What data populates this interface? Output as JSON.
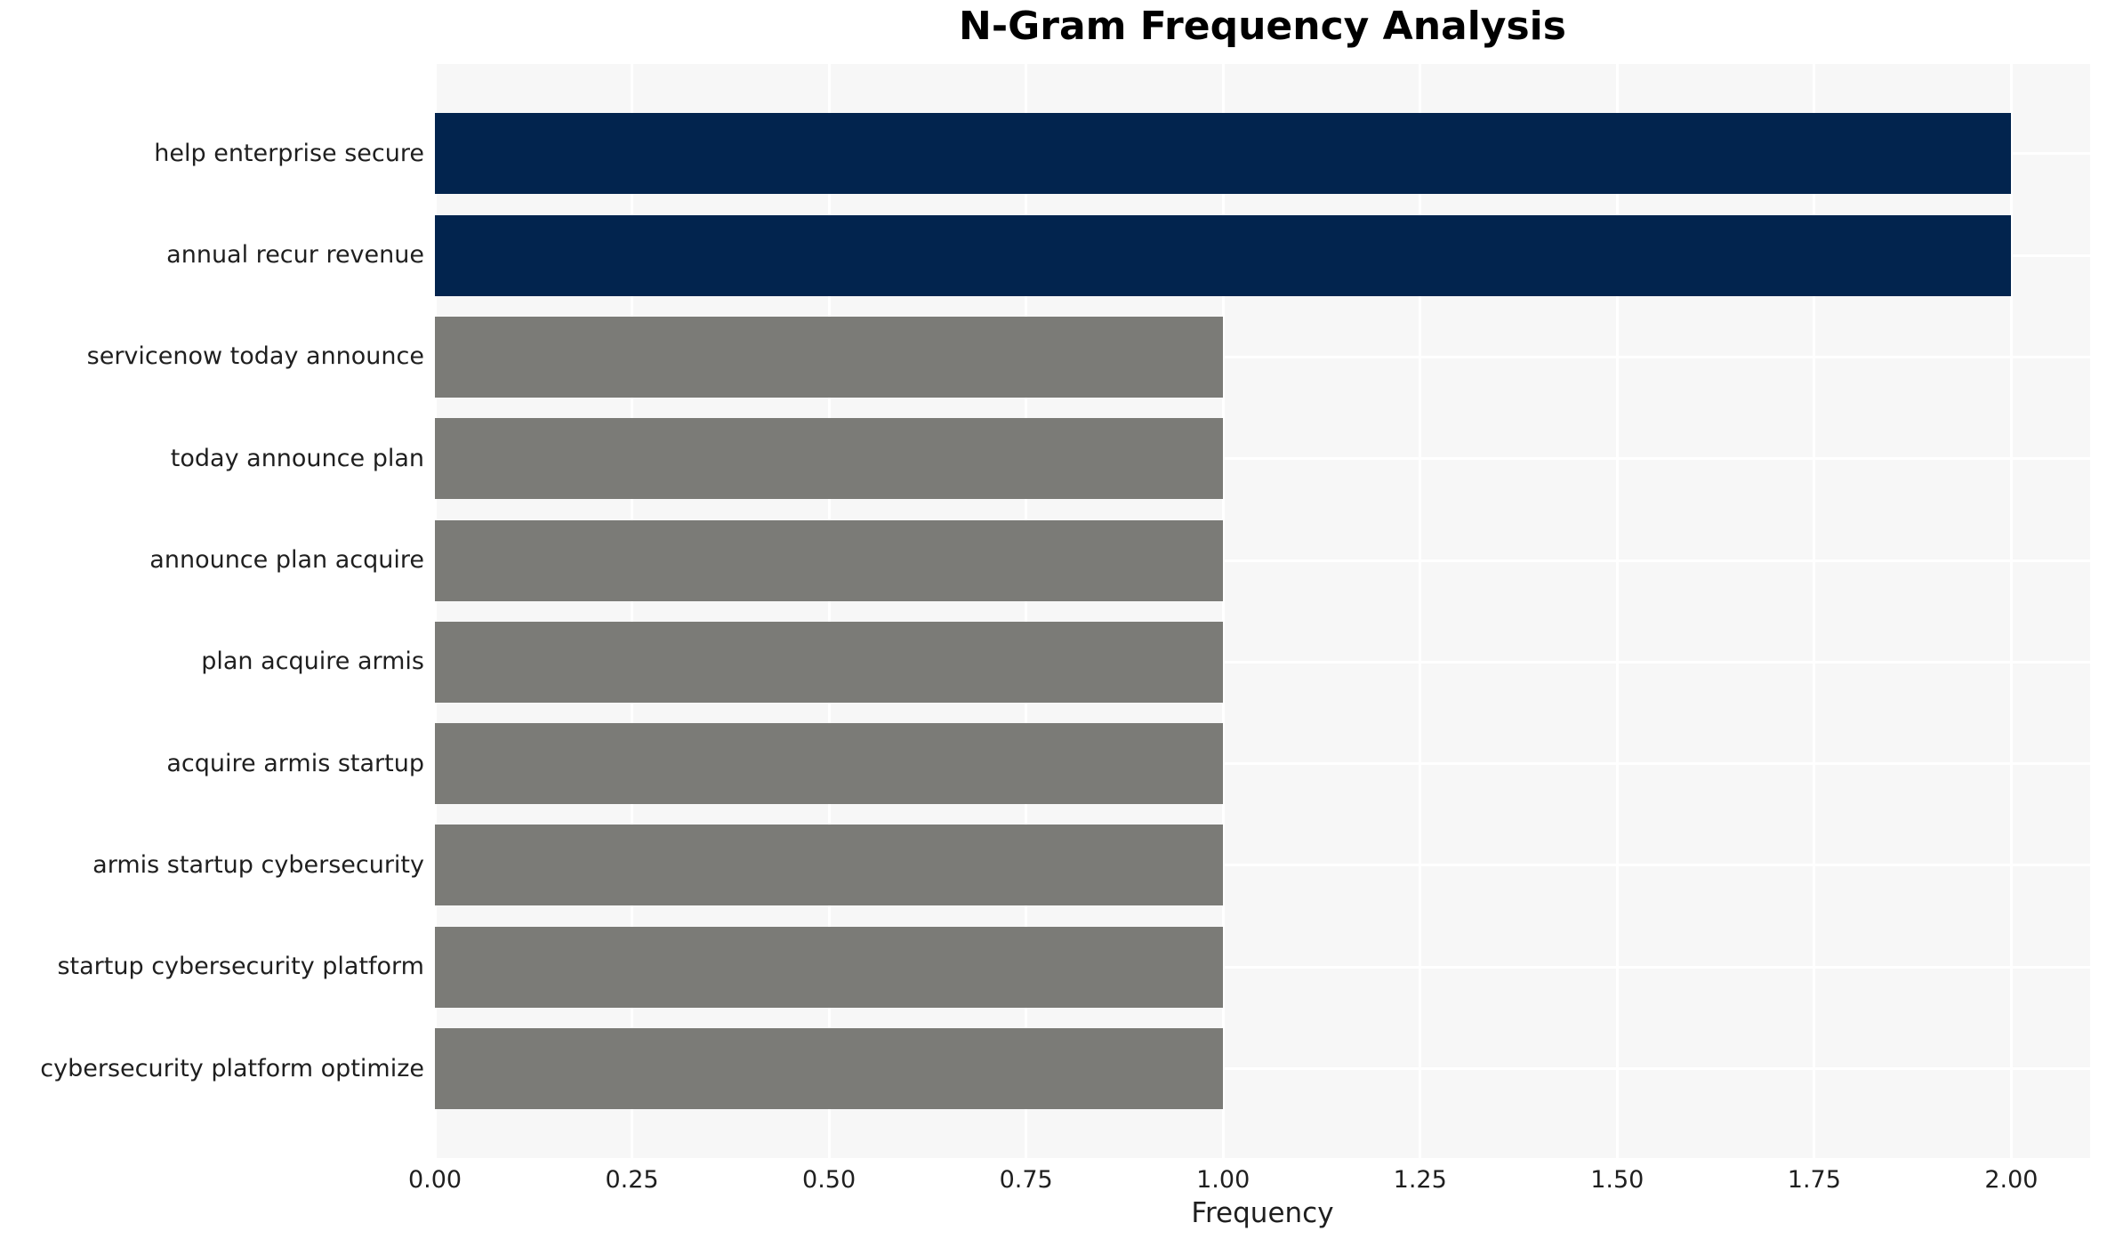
{
  "title": "N-Gram Frequency Analysis",
  "chart_data": {
    "type": "bar",
    "orientation": "horizontal",
    "title": "N-Gram Frequency Analysis",
    "categories": [
      "help enterprise secure",
      "annual recur revenue",
      "servicenow today announce",
      "today announce plan",
      "announce plan acquire",
      "plan acquire armis",
      "acquire armis startup",
      "armis startup cybersecurity",
      "startup cybersecurity platform",
      "cybersecurity platform optimize"
    ],
    "values": [
      2,
      2,
      1,
      1,
      1,
      1,
      1,
      1,
      1,
      1
    ],
    "bar_colors": [
      "#02244E",
      "#02244E",
      "#7B7B77",
      "#7B7B77",
      "#7B7B77",
      "#7B7B77",
      "#7B7B77",
      "#7B7B77",
      "#7B7B77",
      "#7B7B77"
    ],
    "xlabel": "Frequency",
    "ylabel": "",
    "x_ticks": [
      0.0,
      0.25,
      0.5,
      0.75,
      1.0,
      1.25,
      1.5,
      1.75,
      2.0
    ],
    "x_tick_labels": [
      "0.00",
      "0.25",
      "0.50",
      "0.75",
      "1.00",
      "1.25",
      "1.50",
      "1.75",
      "2.00"
    ],
    "xlim": [
      0,
      2.1
    ],
    "legend": "none",
    "grid": "on",
    "colors": {
      "high_freq_bar": "#02244E",
      "low_freq_bar": "#7B7B77",
      "plot_background": "#F7F7F7",
      "gridline": "#FFFFFF",
      "text": "#1f1f1f"
    }
  }
}
